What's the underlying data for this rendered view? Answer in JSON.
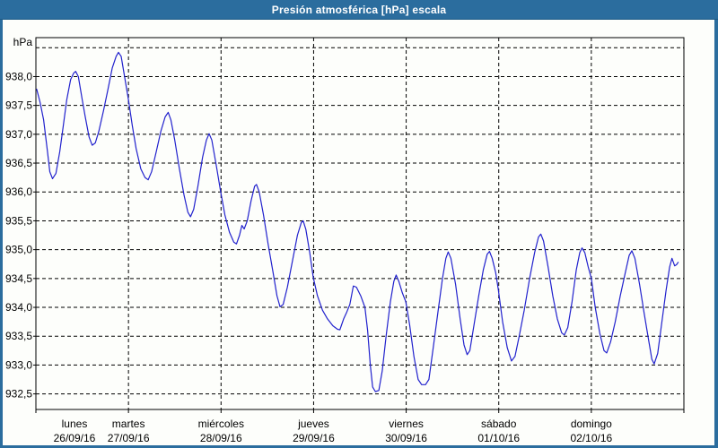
{
  "window": {
    "title": "Presión atmosférica [hPa] escala",
    "titlebar_color": "#2b6d9e",
    "border_color": "#2b6d9e",
    "background_color": "#fdfefb"
  },
  "chart_data": {
    "type": "line",
    "title": "Presión atmosférica [hPa] escala",
    "ylabel": "hPa",
    "xlabel": "",
    "grid": "dashed black, horizontal every 0.5 hPa, vertical at each day boundary",
    "legend_position": "none",
    "ylim": [
      932.23,
      938.675
    ],
    "xlim_hours": [
      0,
      168
    ],
    "y_gridline_values": [
      938.5,
      938.0,
      937.5,
      937.0,
      936.5,
      936.0,
      935.5,
      935.0,
      934.5,
      934.0,
      933.5,
      933.0,
      932.5
    ],
    "y_tick_labels": [
      {
        "value": 938.0,
        "label": "938,0"
      },
      {
        "value": 937.5,
        "label": "937,5"
      },
      {
        "value": 937.0,
        "label": "937,0"
      },
      {
        "value": 936.5,
        "label": "936,5"
      },
      {
        "value": 936.0,
        "label": "936,0"
      },
      {
        "value": 935.5,
        "label": "935,5"
      },
      {
        "value": 935.0,
        "label": "935,0"
      },
      {
        "value": 934.5,
        "label": "934,5"
      },
      {
        "value": 934.0,
        "label": "934,0"
      },
      {
        "value": 933.5,
        "label": "933,5"
      },
      {
        "value": 933.0,
        "label": "933,0"
      },
      {
        "value": 932.5,
        "label": "932,5"
      }
    ],
    "days": [
      {
        "name": "lunes",
        "date": "26/09/16",
        "anchor_hour": 10
      },
      {
        "name": "martes",
        "date": "27/09/16",
        "anchor_hour": 24
      },
      {
        "name": "miércoles",
        "date": "28/09/16",
        "anchor_hour": 48
      },
      {
        "name": "jueves",
        "date": "29/09/16",
        "anchor_hour": 72
      },
      {
        "name": "viernes",
        "date": "30/09/16",
        "anchor_hour": 96
      },
      {
        "name": "sábado",
        "date": "01/10/16",
        "anchor_hour": 120
      },
      {
        "name": "domingo",
        "date": "02/10/16",
        "anchor_hour": 144
      }
    ],
    "day_boundary_hours": [
      0,
      24,
      48,
      72,
      96,
      120,
      144,
      168
    ],
    "series": [
      {
        "name": "Presión atmosférica",
        "color": "#2121cd",
        "points_hour_hpa": [
          [
            0.2,
            937.78
          ],
          [
            1.1,
            937.55
          ],
          [
            2.0,
            937.25
          ],
          [
            3.0,
            936.7
          ],
          [
            3.6,
            936.35
          ],
          [
            4.3,
            936.23
          ],
          [
            5.2,
            936.32
          ],
          [
            6.2,
            936.7
          ],
          [
            7.0,
            937.1
          ],
          [
            8.0,
            937.6
          ],
          [
            9.0,
            937.95
          ],
          [
            9.8,
            938.06
          ],
          [
            10.3,
            938.09
          ],
          [
            11.0,
            938.0
          ],
          [
            12.0,
            937.6
          ],
          [
            12.8,
            937.3
          ],
          [
            13.8,
            936.95
          ],
          [
            14.6,
            936.81
          ],
          [
            15.4,
            936.85
          ],
          [
            16.3,
            937.05
          ],
          [
            17.5,
            937.4
          ],
          [
            18.6,
            937.75
          ],
          [
            19.8,
            938.15
          ],
          [
            20.8,
            938.35
          ],
          [
            21.4,
            938.42
          ],
          [
            22.1,
            938.35
          ],
          [
            23.0,
            938.0
          ],
          [
            24.0,
            937.6
          ],
          [
            25.0,
            937.15
          ],
          [
            26.0,
            936.75
          ],
          [
            27.2,
            936.4
          ],
          [
            28.3,
            936.25
          ],
          [
            29.1,
            936.21
          ],
          [
            30.0,
            936.35
          ],
          [
            31.2,
            936.7
          ],
          [
            32.4,
            937.05
          ],
          [
            33.5,
            937.3
          ],
          [
            34.3,
            937.38
          ],
          [
            35.0,
            937.25
          ],
          [
            36.0,
            936.9
          ],
          [
            37.2,
            936.4
          ],
          [
            38.4,
            935.95
          ],
          [
            39.4,
            935.65
          ],
          [
            40.1,
            935.57
          ],
          [
            40.9,
            935.7
          ],
          [
            42.0,
            936.1
          ],
          [
            43.2,
            936.6
          ],
          [
            44.2,
            936.9
          ],
          [
            44.9,
            937.01
          ],
          [
            45.6,
            936.9
          ],
          [
            46.8,
            936.45
          ],
          [
            47.9,
            936.0
          ],
          [
            49.0,
            935.6
          ],
          [
            50.2,
            935.3
          ],
          [
            51.3,
            935.13
          ],
          [
            52.0,
            935.1
          ],
          [
            52.8,
            935.25
          ],
          [
            53.4,
            935.42
          ],
          [
            54.0,
            935.36
          ],
          [
            54.8,
            935.5
          ],
          [
            55.8,
            935.85
          ],
          [
            56.7,
            936.1
          ],
          [
            57.2,
            936.13
          ],
          [
            57.9,
            936.0
          ],
          [
            59.0,
            935.6
          ],
          [
            60.2,
            935.1
          ],
          [
            61.5,
            934.6
          ],
          [
            62.5,
            934.2
          ],
          [
            63.3,
            934.01
          ],
          [
            64.1,
            934.05
          ],
          [
            65.2,
            934.35
          ],
          [
            66.5,
            934.8
          ],
          [
            67.8,
            935.25
          ],
          [
            68.8,
            935.47
          ],
          [
            69.3,
            935.5
          ],
          [
            70.0,
            935.35
          ],
          [
            71.0,
            934.95
          ],
          [
            71.9,
            934.52
          ],
          [
            73.0,
            934.2
          ],
          [
            74.3,
            933.95
          ],
          [
            75.6,
            933.8
          ],
          [
            77.0,
            933.68
          ],
          [
            78.2,
            933.62
          ],
          [
            78.8,
            933.61
          ],
          [
            79.8,
            933.8
          ],
          [
            80.6,
            933.92
          ],
          [
            81.4,
            934.05
          ],
          [
            82.3,
            934.37
          ],
          [
            83.1,
            934.35
          ],
          [
            84.2,
            934.2
          ],
          [
            85.3,
            934.0
          ],
          [
            86.0,
            933.6
          ],
          [
            86.7,
            933.0
          ],
          [
            87.3,
            932.62
          ],
          [
            88.0,
            932.54
          ],
          [
            88.9,
            932.56
          ],
          [
            89.8,
            932.9
          ],
          [
            90.8,
            933.5
          ],
          [
            91.9,
            934.1
          ],
          [
            92.8,
            934.45
          ],
          [
            93.4,
            934.56
          ],
          [
            94.1,
            934.45
          ],
          [
            95.0,
            934.25
          ],
          [
            95.9,
            934.1
          ],
          [
            96.9,
            933.7
          ],
          [
            98.0,
            933.15
          ],
          [
            99.1,
            932.75
          ],
          [
            100.0,
            932.66
          ],
          [
            101.0,
            932.66
          ],
          [
            101.9,
            932.75
          ],
          [
            103.0,
            933.3
          ],
          [
            104.2,
            933.9
          ],
          [
            105.4,
            934.5
          ],
          [
            106.3,
            934.85
          ],
          [
            106.9,
            934.96
          ],
          [
            107.6,
            934.85
          ],
          [
            108.8,
            934.4
          ],
          [
            110.0,
            933.8
          ],
          [
            111.0,
            933.35
          ],
          [
            111.8,
            933.18
          ],
          [
            112.5,
            933.25
          ],
          [
            113.6,
            933.7
          ],
          [
            114.8,
            934.2
          ],
          [
            116.0,
            934.65
          ],
          [
            117.0,
            934.92
          ],
          [
            117.6,
            934.97
          ],
          [
            118.3,
            934.85
          ],
          [
            119.2,
            934.6
          ],
          [
            119.9,
            934.3
          ],
          [
            121.0,
            933.75
          ],
          [
            122.2,
            933.3
          ],
          [
            123.3,
            933.07
          ],
          [
            124.2,
            933.15
          ],
          [
            125.3,
            933.5
          ],
          [
            126.6,
            933.95
          ],
          [
            128.0,
            934.5
          ],
          [
            129.3,
            934.95
          ],
          [
            130.3,
            935.22
          ],
          [
            130.9,
            935.27
          ],
          [
            131.6,
            935.15
          ],
          [
            132.8,
            934.7
          ],
          [
            134.0,
            934.2
          ],
          [
            135.2,
            933.8
          ],
          [
            136.3,
            933.56
          ],
          [
            137.0,
            933.52
          ],
          [
            137.9,
            933.65
          ],
          [
            139.0,
            934.1
          ],
          [
            140.1,
            934.65
          ],
          [
            141.0,
            934.95
          ],
          [
            141.6,
            935.03
          ],
          [
            142.3,
            934.95
          ],
          [
            143.2,
            934.7
          ],
          [
            144.0,
            934.5
          ],
          [
            145.0,
            934.0
          ],
          [
            146.2,
            933.55
          ],
          [
            147.3,
            933.25
          ],
          [
            148.0,
            933.21
          ],
          [
            149.0,
            933.4
          ],
          [
            150.2,
            933.75
          ],
          [
            151.5,
            934.2
          ],
          [
            152.8,
            934.6
          ],
          [
            153.8,
            934.9
          ],
          [
            154.5,
            934.98
          ],
          [
            155.3,
            934.85
          ],
          [
            156.5,
            934.4
          ],
          [
            157.7,
            933.9
          ],
          [
            158.8,
            933.45
          ],
          [
            159.7,
            933.1
          ],
          [
            160.3,
            933.02
          ],
          [
            161.2,
            933.2
          ],
          [
            162.3,
            933.75
          ],
          [
            163.4,
            934.3
          ],
          [
            164.3,
            934.7
          ],
          [
            164.9,
            934.85
          ],
          [
            165.6,
            934.72
          ],
          [
            166.1,
            934.74
          ],
          [
            166.5,
            934.78
          ]
        ]
      }
    ]
  }
}
